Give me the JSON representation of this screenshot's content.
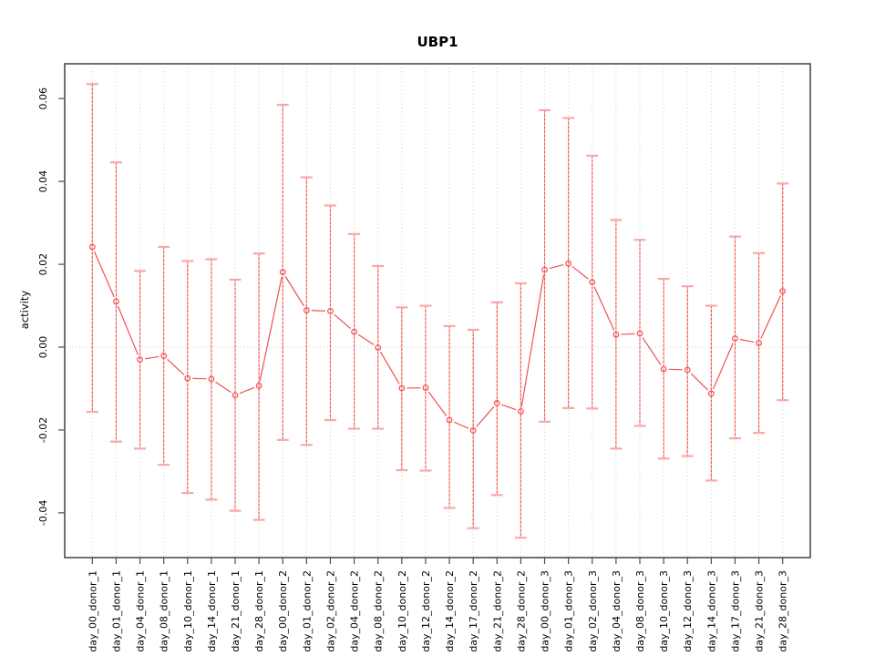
{
  "chart_data": {
    "type": "line",
    "subtype": "points-with-error-bars",
    "title": "UBP1",
    "xlabel": "",
    "ylabel": "activity",
    "legend_position": "none",
    "ylim": [
      -0.0508,
      0.0684
    ],
    "yticks": {
      "values": [
        0.06,
        0.04,
        0.02,
        0.0,
        -0.02,
        -0.04
      ],
      "labels": [
        "0.06",
        "0.04",
        "0.02",
        "0.00",
        "-0.02",
        "-0.04"
      ]
    },
    "grid": {
      "vertical": "dotted gridline at every category",
      "horizontal": "dotted gridline at y = 0 only"
    },
    "categories": [
      "day_00_donor_1",
      "day_01_donor_1",
      "day_04_donor_1",
      "day_08_donor_1",
      "day_10_donor_1",
      "day_14_donor_1",
      "day_21_donor_1",
      "day_28_donor_1",
      "day_00_donor_2",
      "day_01_donor_2",
      "day_02_donor_2",
      "day_04_donor_2",
      "day_08_donor_2",
      "day_10_donor_2",
      "day_12_donor_2",
      "day_14_donor_2",
      "day_17_donor_2",
      "day_21_donor_2",
      "day_28_donor_2",
      "day_00_donor_3",
      "day_01_donor_3",
      "day_02_donor_3",
      "day_04_donor_3",
      "day_08_donor_3",
      "day_10_donor_3",
      "day_12_donor_3",
      "day_14_donor_3",
      "day_17_donor_3",
      "day_21_donor_3",
      "day_28_donor_3"
    ],
    "series": [
      {
        "name": "UBP1 activity",
        "values": [
          0.0242,
          0.011,
          -0.003,
          -0.0021,
          -0.0075,
          -0.0077,
          -0.0116,
          -0.0093,
          0.0181,
          0.0089,
          0.0087,
          0.0037,
          -0.0001,
          -0.0099,
          -0.0098,
          -0.0176,
          -0.0201,
          -0.0135,
          -0.0155,
          0.0187,
          0.0202,
          0.0157,
          0.003,
          0.0033,
          -0.0053,
          -0.0055,
          -0.0112,
          0.0021,
          0.001,
          0.0135
        ],
        "lower": [
          -0.0156,
          -0.0228,
          -0.0245,
          -0.0284,
          -0.0352,
          -0.0368,
          -0.0395,
          -0.0417,
          -0.0224,
          -0.0236,
          -0.0176,
          -0.0197,
          -0.0197,
          -0.0297,
          -0.0298,
          -0.0388,
          -0.0437,
          -0.0357,
          -0.046,
          -0.018,
          -0.0147,
          -0.0148,
          -0.0245,
          -0.019,
          -0.0269,
          -0.0263,
          -0.0322,
          -0.022,
          -0.0207,
          -0.0128
        ],
        "upper": [
          0.0635,
          0.0446,
          0.0184,
          0.0242,
          0.0208,
          0.0212,
          0.0163,
          0.0226,
          0.0585,
          0.041,
          0.0342,
          0.0273,
          0.0196,
          0.0096,
          0.01,
          0.0051,
          0.0042,
          0.0108,
          0.0154,
          0.0572,
          0.0553,
          0.0462,
          0.0307,
          0.0259,
          0.0165,
          0.0147,
          0.01,
          0.0267,
          0.0227,
          0.0395
        ]
      }
    ],
    "colors": {
      "series_red": "#f25050",
      "errorbar_pale_red": "#f9a8a8",
      "gridline": "#d2d2d2",
      "axis": "#4d4d4d",
      "text": "#000000",
      "background": "#ffffff"
    }
  }
}
